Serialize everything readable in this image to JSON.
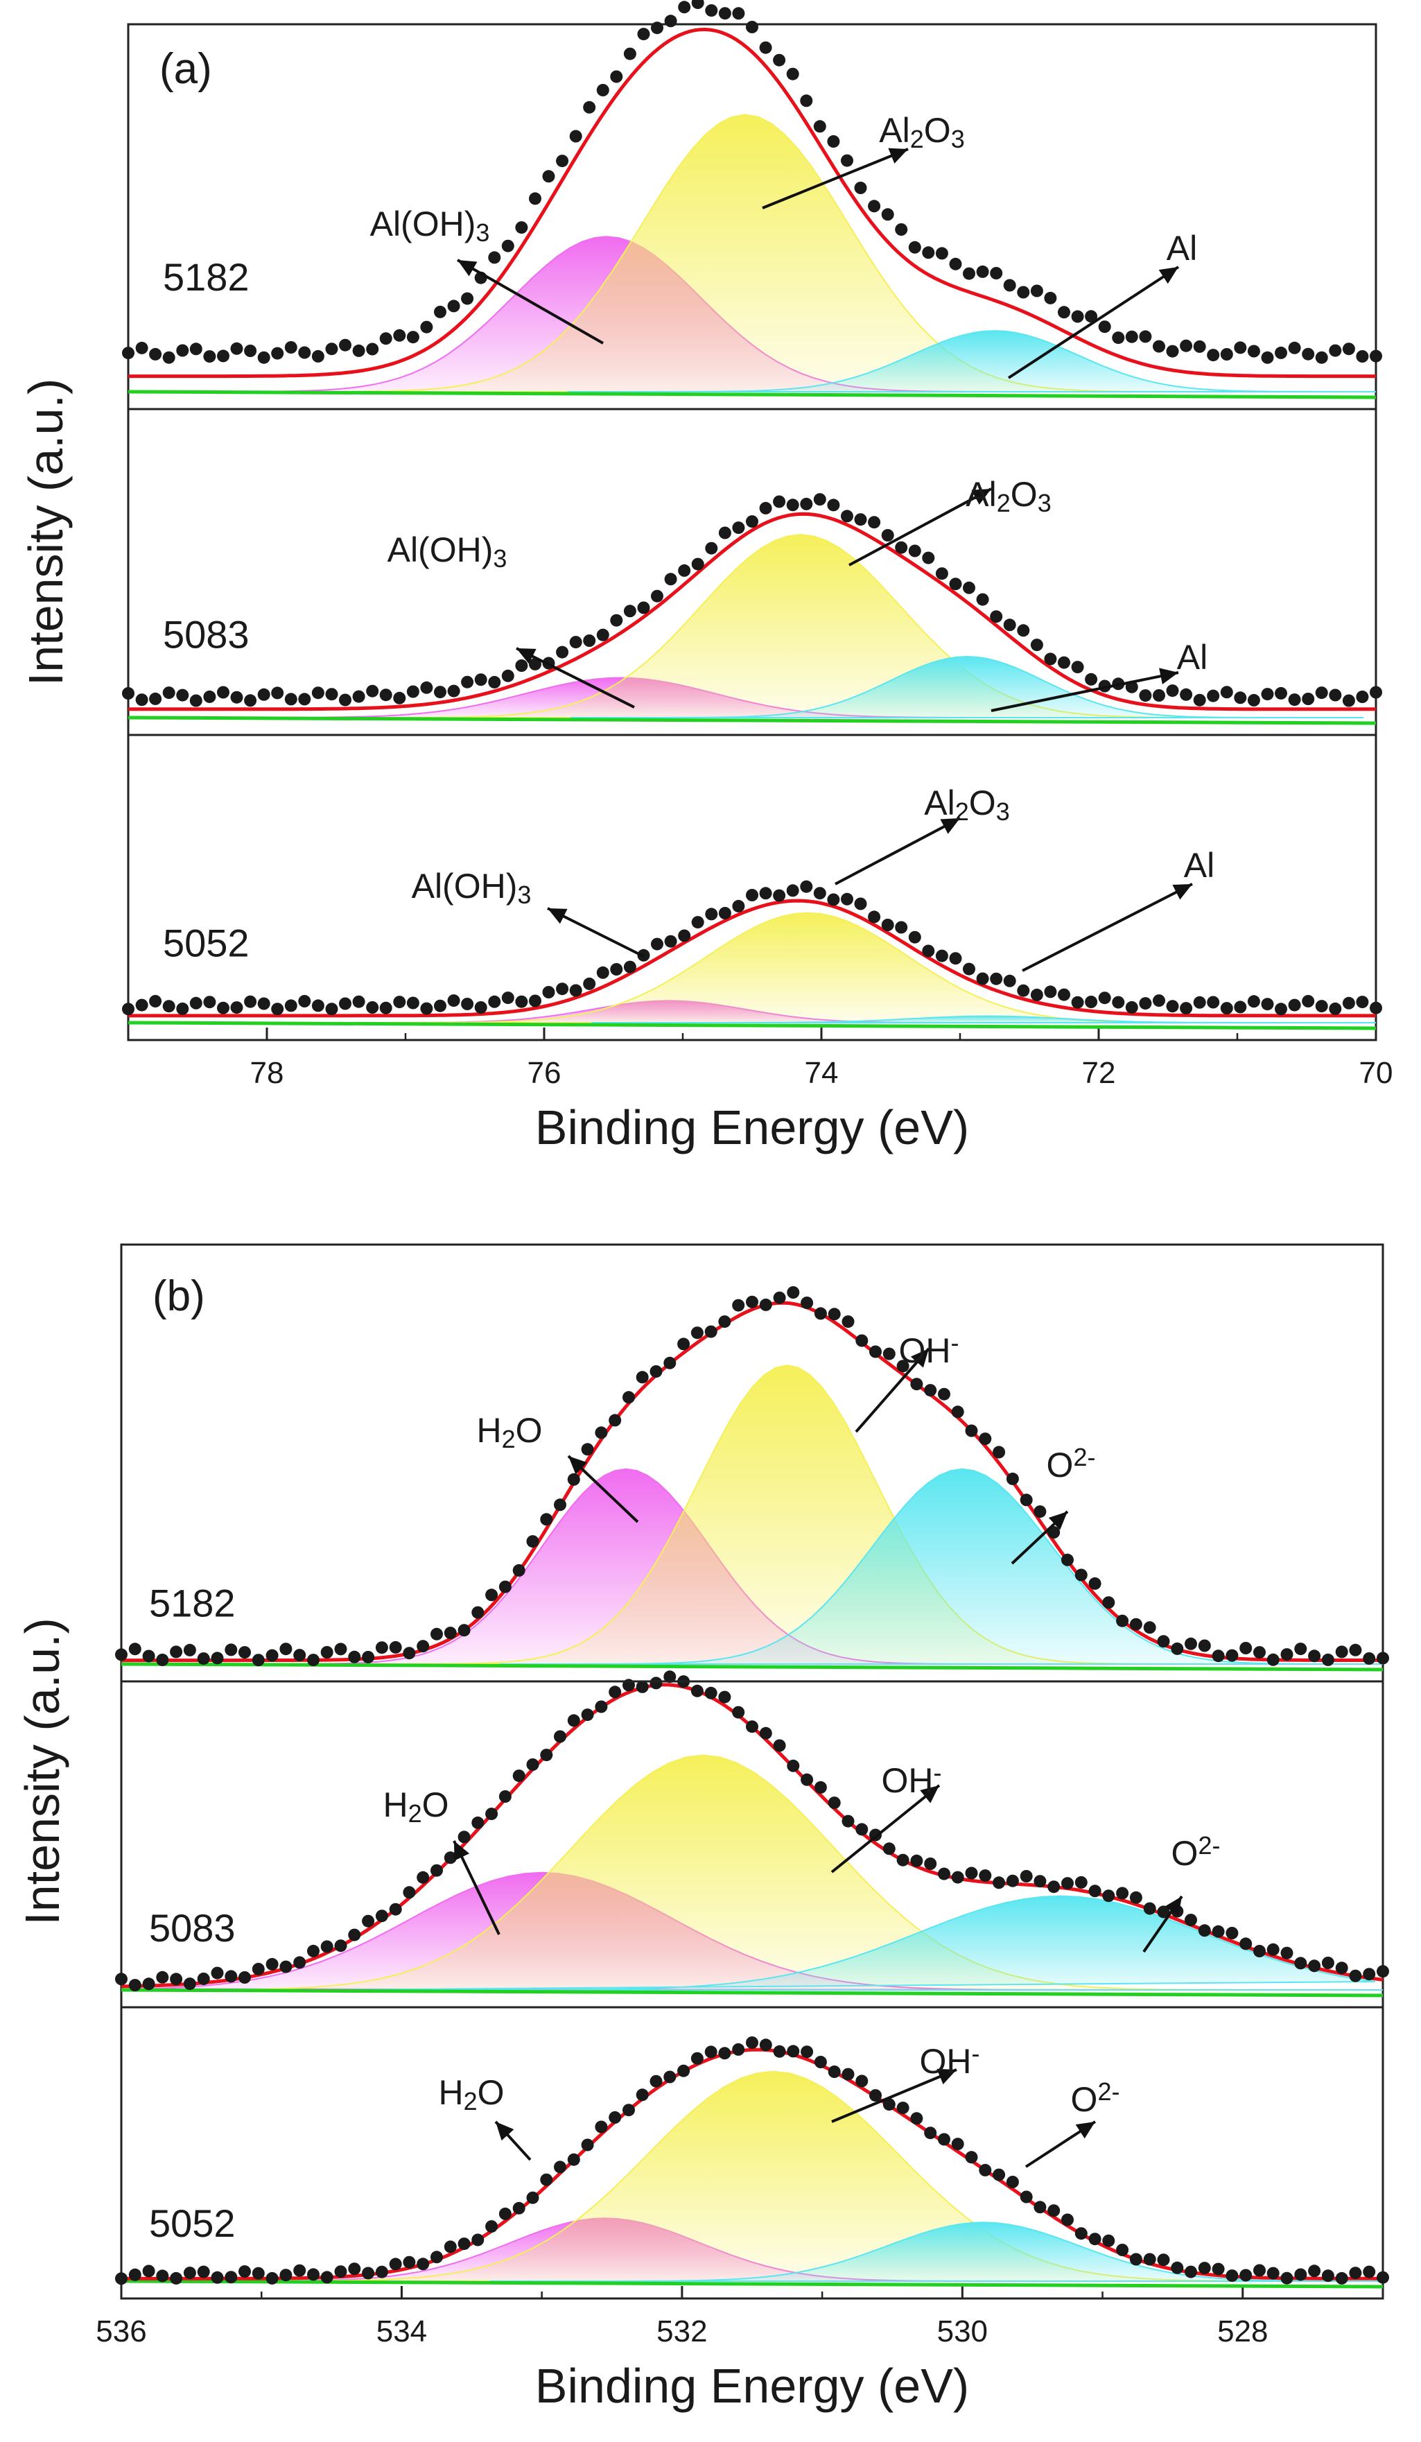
{
  "chart_data": [
    {
      "panel": "(a)",
      "type": "line",
      "xlabel": "Binding Energy (eV)",
      "ylabel": "Intensity (a.u.)",
      "xlim": [
        79,
        70
      ],
      "xticks": [
        "78",
        "76",
        "74",
        "72",
        "70"
      ],
      "xtick_values": [
        78,
        76,
        74,
        72,
        70
      ],
      "colors": {
        "fit": "#e8111b",
        "baseline": "#22d022",
        "hydroxide": "#f06cf0",
        "oxide": "#f5f05a",
        "metal": "#5ae6f0",
        "points": "#1a1a1a"
      },
      "spectra": [
        {
          "sample": "5182",
          "baseline": 0.14,
          "peaks": [
            {
              "name": "Al(OH)3",
              "label_main": "Al(OH)",
              "label_sub": "3",
              "center": 75.55,
              "height": 0.56,
              "fwhm": 1.6,
              "color": "hydroxide"
            },
            {
              "name": "Al2O3",
              "label_main": "Al",
              "label_sub": "2",
              "label_main2": "O",
              "label_sub2": "3",
              "center": 74.55,
              "height": 1.0,
              "fwhm": 1.75,
              "color": "oxide"
            },
            {
              "name": "Al",
              "label_main": "Al",
              "center": 72.75,
              "height": 0.22,
              "fwhm": 1.4,
              "color": "metal"
            }
          ]
        },
        {
          "sample": "5083",
          "baseline": 0.09,
          "peaks": [
            {
              "name": "Al(OH)3",
              "label_main": "Al(OH)",
              "label_sub": "3",
              "center": 75.45,
              "height": 0.17,
              "fwhm": 1.6,
              "color": "hydroxide"
            },
            {
              "name": "Al2O3",
              "label_main": "Al",
              "label_sub": "2",
              "label_main2": "O",
              "label_sub2": "3",
              "center": 74.15,
              "height": 0.78,
              "fwhm": 1.7,
              "color": "oxide"
            },
            {
              "name": "Al",
              "label_main": "Al",
              "center": 72.95,
              "height": 0.26,
              "fwhm": 1.3,
              "color": "metal"
            }
          ]
        },
        {
          "sample": "5052",
          "baseline": 0.08,
          "peaks": [
            {
              "name": "Al(OH)3",
              "label_main": "Al(OH)",
              "label_sub": "3",
              "center": 75.1,
              "height": 0.1,
              "fwhm": 1.3,
              "color": "hydroxide"
            },
            {
              "name": "Al2O3",
              "label_main": "Al",
              "label_sub": "2",
              "label_main2": "O",
              "label_sub2": "3",
              "center": 74.1,
              "height": 0.5,
              "fwhm": 1.7,
              "color": "oxide"
            },
            {
              "name": "Al",
              "label_main": "Al",
              "center": 72.8,
              "height": 0.03,
              "fwhm": 1.3,
              "color": "metal"
            }
          ]
        }
      ]
    },
    {
      "panel": "(b)",
      "type": "line",
      "xlabel": "Binding Energy (eV)",
      "ylabel": "Intensity (a.u.)",
      "xlim": [
        536,
        527
      ],
      "xticks": [
        "536",
        "534",
        "532",
        "530",
        "528"
      ],
      "xtick_values": [
        536,
        534,
        532,
        530,
        528
      ],
      "colors": {
        "fit": "#e8111b",
        "baseline": "#22d022",
        "water": "#f06cf0",
        "hydroxide": "#f5f05a",
        "oxide": "#5ae6f0",
        "points": "#1a1a1a"
      },
      "spectra": [
        {
          "sample": "5182",
          "baseline": 0.03,
          "peaks": [
            {
              "name": "H2O",
              "label_main": "H",
              "label_sub": "2",
              "label_main2": "O",
              "center": 532.4,
              "height": 0.62,
              "fwhm": 1.4,
              "color": "water"
            },
            {
              "name": "OH-",
              "label_main": "OH",
              "label_sup": "-",
              "center": 531.25,
              "height": 0.95,
              "fwhm": 1.5,
              "color": "hydroxide"
            },
            {
              "name": "O2-",
              "label_main": "O",
              "label_sup": "2-",
              "center": 530.0,
              "height": 0.62,
              "fwhm": 1.5,
              "color": "oxide"
            }
          ]
        },
        {
          "sample": "5083",
          "baseline": 0.03,
          "peaks": [
            {
              "name": "H2O",
              "label_main": "H",
              "label_sub": "2",
              "label_main2": "O",
              "center": 533.0,
              "height": 0.5,
              "fwhm": 2.2,
              "color": "water"
            },
            {
              "name": "OH-",
              "label_main": "OH",
              "label_sup": "-",
              "center": 531.85,
              "height": 1.0,
              "fwhm": 2.2,
              "color": "hydroxide"
            },
            {
              "name": "O2-",
              "label_main": "O",
              "label_sup": "2-",
              "center": 529.3,
              "height": 0.4,
              "fwhm": 2.4,
              "color": "oxide"
            }
          ]
        },
        {
          "sample": "5052",
          "baseline": 0.03,
          "peaks": [
            {
              "name": "H2O",
              "label_main": "H",
              "label_sub": "2",
              "label_main2": "O",
              "center": 532.55,
              "height": 0.3,
              "fwhm": 1.6,
              "color": "water"
            },
            {
              "name": "OH-",
              "label_main": "OH",
              "label_sup": "-",
              "center": 531.35,
              "height": 1.0,
              "fwhm": 2.1,
              "color": "hydroxide"
            },
            {
              "name": "O2-",
              "label_main": "O",
              "label_sup": "2-",
              "center": 529.85,
              "height": 0.28,
              "fwhm": 1.6,
              "color": "oxide"
            }
          ]
        }
      ]
    }
  ]
}
